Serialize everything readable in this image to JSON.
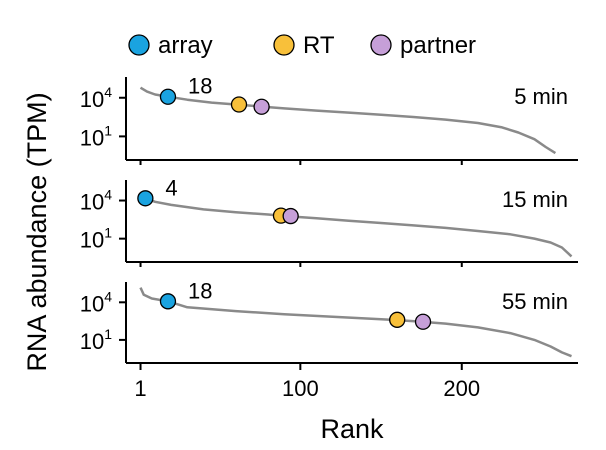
{
  "chart_data": {
    "type": "line",
    "ylabel": "RNA abundance (TPM)",
    "xlabel": "Rank",
    "x_ticks": [
      1,
      100,
      200
    ],
    "xlim": [
      -8,
      272
    ],
    "y_ticks": [
      {
        "base": "10",
        "exp": "4",
        "value": 10000
      },
      {
        "base": "10",
        "exp": "1",
        "value": 10
      }
    ],
    "y_scale": "log",
    "ylim": [
      0.3,
      200000
    ],
    "legend": [
      {
        "label": "array",
        "color": "#1aa3e0"
      },
      {
        "label": "RT",
        "color": "#f8c03a"
      },
      {
        "label": "partner",
        "color": "#c69fd8"
      }
    ],
    "legend_position": "top",
    "panels": [
      {
        "label": "5 min",
        "curve": {
          "x": [
            1,
            5,
            10,
            18,
            30,
            45,
            60,
            73,
            90,
            110,
            130,
            150,
            170,
            190,
            210,
            225,
            235,
            245,
            252,
            258
          ],
          "y": [
            60000,
            30000,
            18000,
            12000,
            7000,
            4200,
            3000,
            2200,
            1500,
            1000,
            700,
            480,
            320,
            200,
            110,
            50,
            20,
            6,
            1.5,
            0.5
          ]
        },
        "points": [
          {
            "series": "array",
            "x": 18,
            "y": 12000,
            "label": "18"
          },
          {
            "series": "RT",
            "x": 62,
            "y": 3000,
            "label": ""
          },
          {
            "series": "partner",
            "x": 76,
            "y": 2000,
            "label": ""
          }
        ]
      },
      {
        "label": "15 min",
        "curve": {
          "x": [
            1,
            4,
            10,
            20,
            40,
            60,
            80,
            91,
            110,
            130,
            150,
            170,
            190,
            210,
            230,
            245,
            255,
            262,
            268
          ],
          "y": [
            40000,
            15000,
            8000,
            4500,
            2000,
            1200,
            800,
            600,
            400,
            260,
            170,
            110,
            70,
            40,
            22,
            10,
            5,
            2,
            0.4
          ]
        },
        "points": [
          {
            "series": "array",
            "x": 4,
            "y": 15000,
            "label": "4"
          },
          {
            "series": "RT",
            "x": 88,
            "y": 650,
            "label": ""
          },
          {
            "series": "partner",
            "x": 94,
            "y": 600,
            "label": ""
          }
        ]
      },
      {
        "label": "55 min",
        "curve": {
          "x": [
            1,
            3,
            8,
            18,
            30,
            60,
            90,
            120,
            150,
            160,
            172,
            190,
            210,
            230,
            245,
            255,
            262,
            268
          ],
          "y": [
            150000,
            40000,
            20000,
            12000,
            4000,
            2000,
            1100,
            700,
            450,
            380,
            300,
            200,
            100,
            35,
            10,
            3,
            1,
            0.5
          ]
        },
        "points": [
          {
            "series": "array",
            "x": 18,
            "y": 12000,
            "label": "18"
          },
          {
            "series": "RT",
            "x": 160,
            "y": 400,
            "label": ""
          },
          {
            "series": "partner",
            "x": 176,
            "y": 280,
            "label": ""
          }
        ]
      }
    ]
  }
}
